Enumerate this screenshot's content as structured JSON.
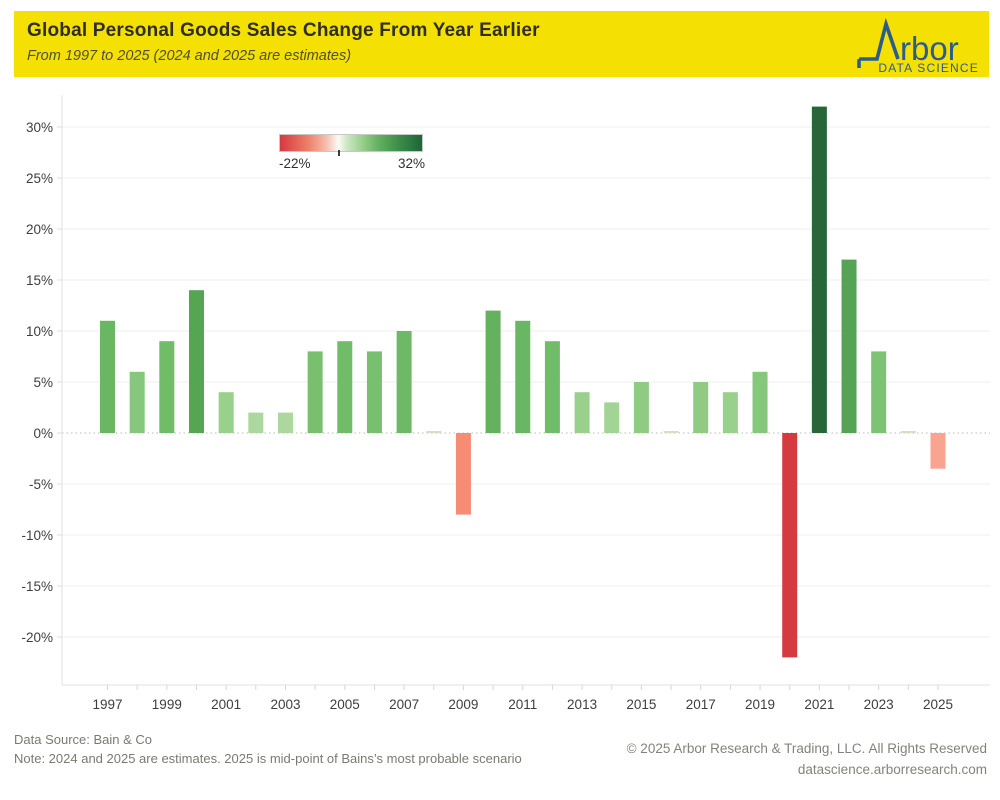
{
  "header": {
    "background_color": "#F5E003"
  },
  "logo": {
    "brand": "Arbor",
    "tagline": "DATA SCIENCE",
    "color": "#2A5C8C"
  },
  "legend": {
    "min_label": "-22%",
    "max_label": "32%"
  },
  "chart_data": {
    "type": "bar",
    "title": "Global Personal Goods Sales Change From Year Earlier",
    "subtitle": "From 1997 to 2025 (2024 and 2025 are estimates)",
    "x": [
      1997,
      1998,
      1999,
      2000,
      2001,
      2002,
      2003,
      2004,
      2005,
      2006,
      2007,
      2008,
      2009,
      2010,
      2011,
      2012,
      2013,
      2014,
      2015,
      2016,
      2017,
      2018,
      2019,
      2020,
      2021,
      2022,
      2023,
      2024,
      2025
    ],
    "values": [
      11,
      6,
      9,
      14,
      4,
      2,
      2,
      8,
      9,
      8,
      10,
      0,
      -8,
      12,
      11,
      9,
      4,
      3,
      5,
      0,
      5,
      4,
      6,
      -22,
      32,
      17,
      8,
      0,
      -3.5
    ],
    "bar_colors": [
      "#69B763",
      "#85C77B",
      "#71BC69",
      "#55A553",
      "#98D08C",
      "#ACD89F",
      "#ACD89F",
      "#78C06E",
      "#71BC69",
      "#78C06E",
      "#6DB965",
      "#D8DDC6",
      "#F68C74",
      "#64B25E",
      "#69B763",
      "#71BC69",
      "#98D08C",
      "#A2D495",
      "#8FCB83",
      "#D8DDC6",
      "#8FCB83",
      "#98D08C",
      "#85C77B",
      "#D63A41",
      "#266639",
      "#57A355",
      "#7CC473",
      "#D8DDC6",
      "#F9A491"
    ],
    "xlabel": "",
    "ylabel": "",
    "ylim": [
      -24.5,
      33
    ],
    "y_ticks": [
      30,
      25,
      20,
      15,
      10,
      5,
      0,
      -5,
      -10,
      -15,
      -20
    ],
    "y_tick_labels": [
      "30%",
      "25%",
      "20%",
      "15%",
      "10%",
      "5%",
      "0%",
      "-5%",
      "-10%",
      "-15%",
      "-20%"
    ],
    "x_tick_labels": [
      1997,
      1999,
      2001,
      2003,
      2005,
      2007,
      2009,
      2011,
      2013,
      2015,
      2017,
      2019,
      2021,
      2023,
      2025
    ],
    "grid": true,
    "zero_line_style": "dotted",
    "color_scale": {
      "min": -22,
      "max": 32,
      "min_color": "#D7383F",
      "mid_color": "#FFFFFF",
      "max_color": "#1E6537",
      "legend_position": "upper-left-in-plot"
    }
  },
  "footer": {
    "source": "Data Source: Bain & Co",
    "note": "Note: 2024 and 2025 are estimates. 2025 is mid-point of Bains’s most probable scenario",
    "copyright": "© 2025 Arbor Research & Trading, LLC. All Rights Reserved",
    "website": "datascience.arborresearch.com"
  }
}
